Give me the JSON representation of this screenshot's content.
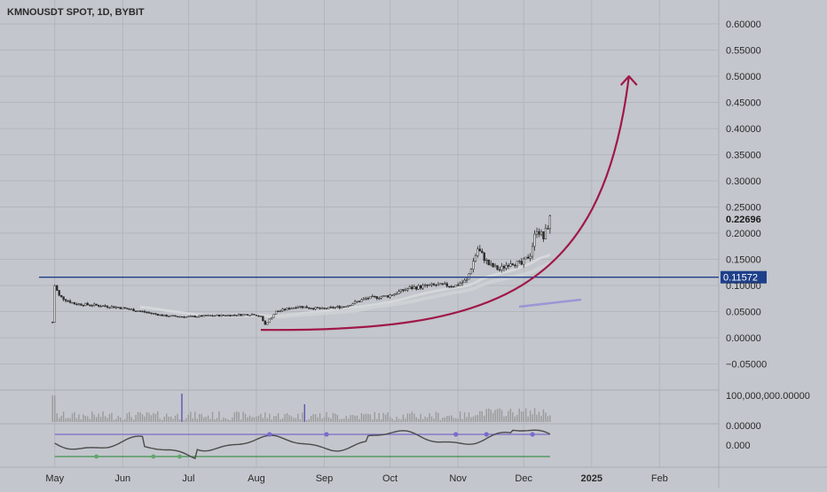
{
  "chart_data": {
    "type": "line",
    "title": "KMNOUSDT SPOT, 1D, BYBIT",
    "price_axis": {
      "ticks": [
        0.6,
        0.55,
        0.5,
        0.45,
        0.4,
        0.35,
        0.3,
        0.25,
        0.2,
        0.15,
        0.1,
        0.05,
        0.0,
        -0.05
      ],
      "tick_labels": [
        "0.60000",
        "0.55000",
        "0.50000",
        "0.45000",
        "0.40000",
        "0.35000",
        "0.30000",
        "0.25000",
        "0.20000",
        "0.15000",
        "0.10000",
        "0.05000",
        "0.00000",
        "−0.05000"
      ],
      "ylim": [
        -0.075,
        0.64
      ]
    },
    "volume_axis_label": "100,000,000.00000",
    "oscillator_axis_labels": [
      "0.00000",
      "0.000"
    ],
    "x_axis": {
      "labels": [
        "May",
        "Jun",
        "Jul",
        "Aug",
        "Sep",
        "Oct",
        "Nov",
        "Dec",
        "2025",
        "Feb"
      ],
      "label_dates": [
        "2024-05-01",
        "2024-06-01",
        "2024-07-01",
        "2024-08-01",
        "2024-09-01",
        "2024-10-01",
        "2024-11-01",
        "2024-12-01",
        "2025-01-01",
        "2025-02-01"
      ],
      "xlim": [
        "2024-04-06",
        "2025-02-28"
      ]
    },
    "last_price": {
      "value": 0.22696,
      "label": "0.22696"
    },
    "horizontal_line": {
      "value": 0.11572,
      "label": "0.11572",
      "color": "#1e3f8a"
    },
    "price_series": {
      "dates": [
        "2024-04-30",
        "2024-05-01",
        "2024-05-02",
        "2024-05-03",
        "2024-05-05",
        "2024-05-10",
        "2024-05-20",
        "2024-05-30",
        "2024-06-10",
        "2024-06-20",
        "2024-06-30",
        "2024-07-10",
        "2024-07-20",
        "2024-07-31",
        "2024-08-03",
        "2024-08-05",
        "2024-08-10",
        "2024-08-20",
        "2024-08-31",
        "2024-09-10",
        "2024-09-20",
        "2024-09-30",
        "2024-10-10",
        "2024-10-20",
        "2024-10-31",
        "2024-11-05",
        "2024-11-10",
        "2024-11-15",
        "2024-11-20",
        "2024-11-25",
        "2024-11-30",
        "2024-12-04",
        "2024-12-07",
        "2024-12-10",
        "2024-12-13"
      ],
      "close": [
        0.03,
        0.1,
        0.09,
        0.08,
        0.075,
        0.065,
        0.062,
        0.058,
        0.05,
        0.042,
        0.04,
        0.042,
        0.043,
        0.045,
        0.04,
        0.025,
        0.05,
        0.06,
        0.055,
        0.06,
        0.075,
        0.08,
        0.095,
        0.1,
        0.1,
        0.11,
        0.17,
        0.14,
        0.13,
        0.145,
        0.14,
        0.16,
        0.21,
        0.19,
        0.22696
      ]
    },
    "annotations": [
      {
        "type": "curved-arrow",
        "color": "#a01848",
        "from_date": "2024-08-03",
        "from_value": 0.015,
        "to_date": "2025-01-18",
        "to_value": 0.5
      }
    ],
    "colors": {
      "background": "#c3c6cc",
      "candle": "#2b2b2b",
      "grid": "#b3b6bd",
      "annotation_curve": "#a01848",
      "level_line": "#1e3f8a",
      "oscillator_line": "#4b4b4b",
      "oscillator_upper_band": "#7a6acb",
      "oscillator_lower_band": "#3f8f4e",
      "volume_bar": "#9a9a9a",
      "volume_bar_highlight": "#5b55b0"
    }
  }
}
